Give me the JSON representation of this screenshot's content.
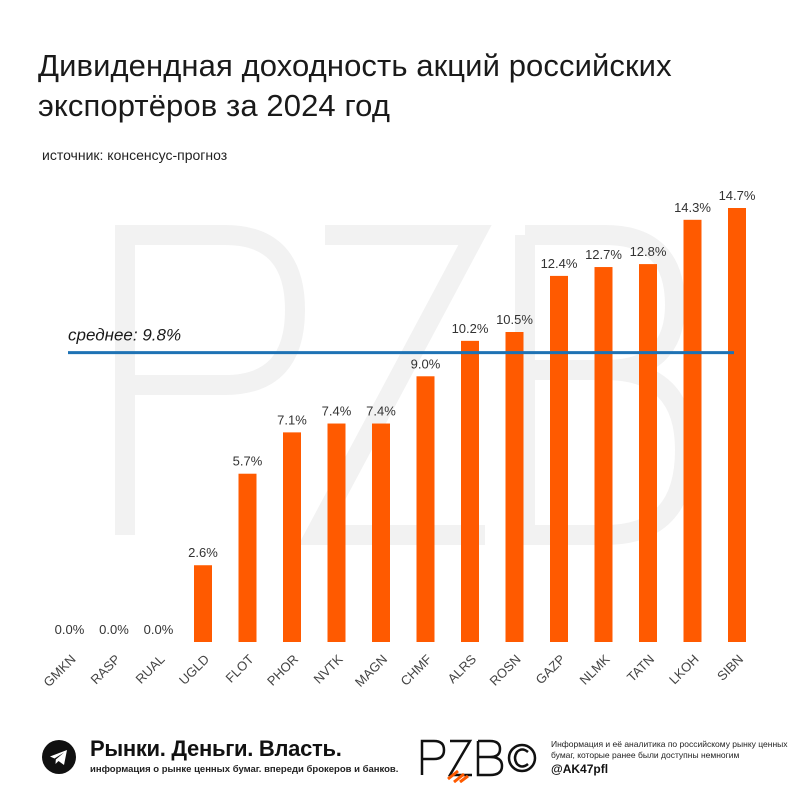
{
  "title": "Дивидендная доходность акций российских экспортёров за 2024 год",
  "subtitle": "источник: консенсус-прогноз",
  "colors": {
    "bar": "#ff5a00",
    "mean_line": "#1e72b4",
    "text": "#1a1a1a"
  },
  "chart_data": {
    "type": "bar",
    "categories": [
      "GMKN",
      "RASP",
      "RUAL",
      "UGLD",
      "FLOT",
      "PHOR",
      "NVTK",
      "MAGN",
      "CHMF",
      "ALRS",
      "ROSN",
      "GAZP",
      "NLMK",
      "TATN",
      "LKOH",
      "SIBN"
    ],
    "values": [
      0.0,
      0.0,
      0.0,
      2.6,
      5.7,
      7.1,
      7.4,
      7.4,
      9.0,
      10.2,
      10.5,
      12.4,
      12.7,
      12.8,
      14.3,
      14.7
    ],
    "labels": [
      "0.0%",
      "0.0%",
      "0.0%",
      "2.6%",
      "5.7%",
      "7.1%",
      "7.4%",
      "7.4%",
      "9.0%",
      "10.2%",
      "10.5%",
      "12.4%",
      "12.7%",
      "12.8%",
      "14.3%",
      "14.7%"
    ],
    "mean": 9.8,
    "mean_label": "среднее: 9.8%",
    "title": "Дивидендная доходность акций российских экспортёров за 2024 год",
    "xlabel": "",
    "ylabel": "",
    "ylim": [
      0,
      14.7
    ],
    "grid": false
  },
  "footer": {
    "brand": "Рынки. Деньги. Власть.",
    "brand_sub": "информация о рынке ценных бумаг. впереди брокеров и банков.",
    "info": "Информация и её аналитика по российскому рынку ценных бумаг, которые ранее были доступны немногим",
    "handle": "@AK47pfl",
    "logo_text": "PZB",
    "icon": "telegram-icon"
  }
}
